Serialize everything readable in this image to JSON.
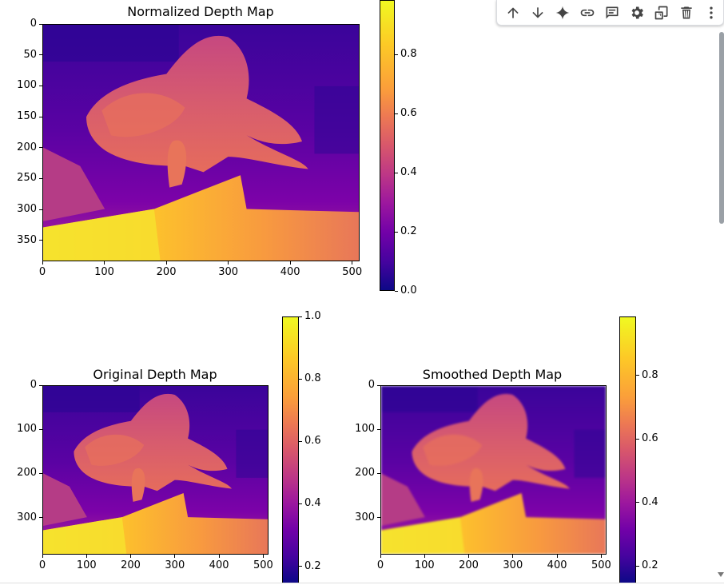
{
  "toolbar": {
    "buttons": [
      {
        "name": "move-up-button",
        "icon": "arrow-up-icon"
      },
      {
        "name": "move-down-button",
        "icon": "arrow-down-icon"
      },
      {
        "name": "ai-sparkle-button",
        "icon": "sparkle-icon"
      },
      {
        "name": "link-button",
        "icon": "link-icon"
      },
      {
        "name": "comment-button",
        "icon": "comment-icon"
      },
      {
        "name": "settings-button",
        "icon": "gear-icon"
      },
      {
        "name": "mirror-cell-button",
        "icon": "mirror-icon"
      },
      {
        "name": "delete-button",
        "icon": "trash-icon"
      },
      {
        "name": "more-button",
        "icon": "more-vert-icon"
      }
    ]
  },
  "plots": {
    "normalized": {
      "title": "Normalized Depth Map",
      "x_ticks": [
        "0",
        "100",
        "200",
        "300",
        "400",
        "500"
      ],
      "y_ticks": [
        "0",
        "50",
        "100",
        "150",
        "200",
        "250",
        "300",
        "350"
      ],
      "cbar_ticks": [
        "0.0",
        "0.2",
        "0.4",
        "0.6",
        "0.8"
      ],
      "colormap": "plasma"
    },
    "original": {
      "title": "Original Depth Map",
      "x_ticks": [
        "0",
        "100",
        "200",
        "300",
        "400",
        "500"
      ],
      "y_ticks": [
        "0",
        "100",
        "200",
        "300"
      ],
      "cbar_ticks": [
        "0.2",
        "0.4",
        "0.6",
        "0.8",
        "1.0"
      ],
      "colormap": "plasma"
    },
    "smoothed": {
      "title": "Smoothed Depth Map",
      "x_ticks": [
        "0",
        "100",
        "200",
        "300",
        "400",
        "500"
      ],
      "y_ticks": [
        "0",
        "100",
        "200",
        "300"
      ],
      "cbar_ticks": [
        "0.2",
        "0.4",
        "0.6",
        "0.8"
      ],
      "colormap": "plasma"
    }
  }
}
